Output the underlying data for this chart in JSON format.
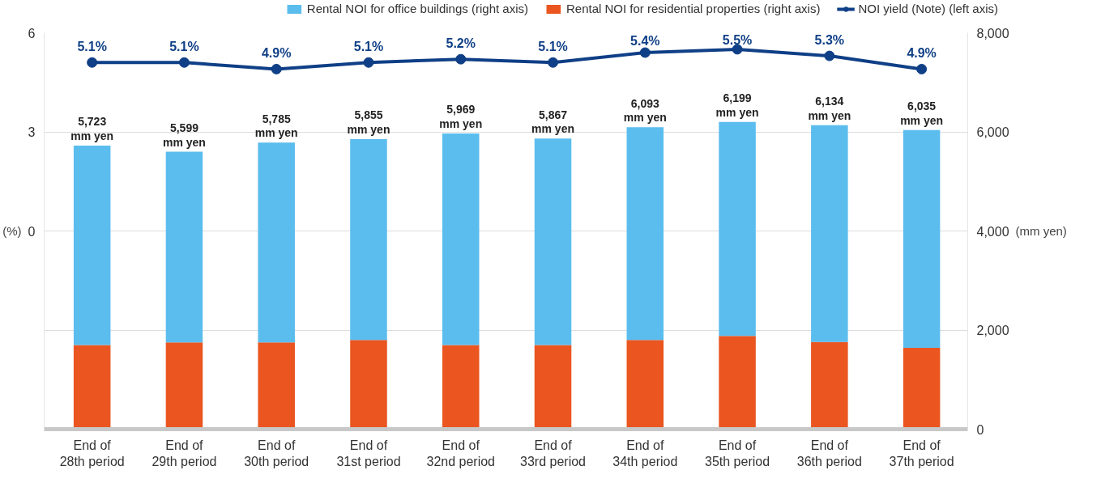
{
  "chart_data": {
    "type": "bar",
    "stacked": true,
    "categories": [
      "End of\n28th period",
      "End of\n29th period",
      "End of\n30th period",
      "End of\n31st period",
      "End of\n32nd period",
      "End of\n33rd period",
      "End of\n34th period",
      "End of\n35th period",
      "End of\n36th period",
      "End of\n37th period"
    ],
    "series": [
      {
        "name": "Rental NOI for residential properties (right axis)",
        "color": "#ea5520",
        "axis": "y2",
        "values": [
          1700,
          1750,
          1750,
          1800,
          1700,
          1700,
          1800,
          1880,
          1760,
          1640
        ]
      },
      {
        "name": "Rental NOI for office buildings (right axis)",
        "color": "#5bbdee",
        "axis": "y2",
        "values": [
          4023,
          3849,
          4035,
          4055,
          4269,
          4167,
          4293,
          4319,
          4374,
          4395
        ]
      },
      {
        "name": "NOI yield (Note) (left axis)",
        "type": "line",
        "color": "#0f3f86",
        "axis": "y",
        "marker": "circle",
        "values": [
          5.1,
          5.1,
          4.9,
          5.1,
          5.2,
          5.1,
          5.4,
          5.5,
          5.3,
          4.9
        ],
        "value_labels": [
          "5.1%",
          "5.1%",
          "4.9%",
          "5.1%",
          "5.2%",
          "5.1%",
          "5.4%",
          "5.5%",
          "5.3%",
          "4.9%"
        ]
      }
    ],
    "totals": [
      "5,723\nmm yen",
      "5,599\nmm yen",
      "5,785\nmm yen",
      "5,855\nmm yen",
      "5,969\nmm yen",
      "5,867\nmm yen",
      "6,093\nmm yen",
      "6,199\nmm yen",
      "6,134\nmm yen",
      "6,035\nmm yen"
    ],
    "ylabel": "(%)",
    "y2label": "(mm yen)",
    "ylim": [
      -6,
      6
    ],
    "yticks": [
      0,
      3,
      6
    ],
    "y2lim": [
      0,
      8000
    ],
    "y2ticks": [
      0,
      {
        "value": 2000,
        "label": "2,000"
      },
      {
        "value": 4000,
        "label": "4,000"
      },
      {
        "value": 6000,
        "label": "6,000"
      },
      {
        "value": 8000,
        "label": "8,000"
      }
    ],
    "grid": "y",
    "legend": "top"
  }
}
